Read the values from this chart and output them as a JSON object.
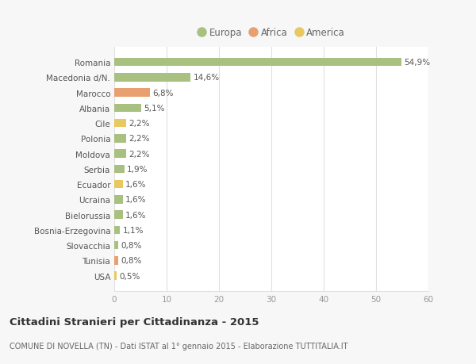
{
  "categories": [
    "Romania",
    "Macedonia d/N.",
    "Marocco",
    "Albania",
    "Cile",
    "Polonia",
    "Moldova",
    "Serbia",
    "Ecuador",
    "Ucraina",
    "Bielorussia",
    "Bosnia-Erzegovina",
    "Slovacchia",
    "Tunisia",
    "USA"
  ],
  "values": [
    54.9,
    14.6,
    6.8,
    5.1,
    2.2,
    2.2,
    2.2,
    1.9,
    1.6,
    1.6,
    1.6,
    1.1,
    0.8,
    0.8,
    0.5
  ],
  "labels": [
    "54,9%",
    "14,6%",
    "6,8%",
    "5,1%",
    "2,2%",
    "2,2%",
    "2,2%",
    "1,9%",
    "1,6%",
    "1,6%",
    "1,6%",
    "1,1%",
    "0,8%",
    "0,8%",
    "0,5%"
  ],
  "colors": [
    "#a8c080",
    "#a8c080",
    "#e8a070",
    "#a8c080",
    "#e8c860",
    "#a8c080",
    "#a8c080",
    "#a8c080",
    "#e8c860",
    "#a8c080",
    "#a8c080",
    "#a8c080",
    "#a8c080",
    "#e8a070",
    "#e8c860"
  ],
  "legend": [
    {
      "label": "Europa",
      "color": "#a8c080"
    },
    {
      "label": "Africa",
      "color": "#e8a070"
    },
    {
      "label": "America",
      "color": "#e8c860"
    }
  ],
  "title": "Cittadini Stranieri per Cittadinanza - 2015",
  "subtitle": "COMUNE DI NOVELLA (TN) - Dati ISTAT al 1° gennaio 2015 - Elaborazione TUTTITALIA.IT",
  "xlim": [
    0,
    60
  ],
  "xticks": [
    0,
    10,
    20,
    30,
    40,
    50,
    60
  ],
  "background_color": "#f7f7f7",
  "plot_bg_color": "#ffffff",
  "grid_color": "#e0e0e0",
  "bar_height": 0.55,
  "label_fontsize": 7.5,
  "ytick_fontsize": 7.5,
  "xtick_fontsize": 7.5,
  "legend_fontsize": 8.5,
  "title_fontsize": 9.5,
  "subtitle_fontsize": 7.0
}
